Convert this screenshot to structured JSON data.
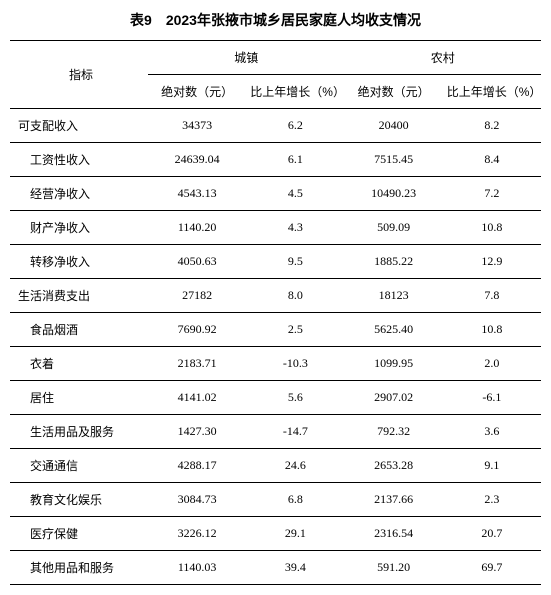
{
  "title": "表9　2023年张掖市城乡居民家庭人均收支情况",
  "headers": {
    "indicator": "指标",
    "urban": "城镇",
    "rural": "农村",
    "abs_yuan": "绝对数（元）",
    "yoy_pct": "比上年增长（%）"
  },
  "rows": [
    {
      "label": "可支配收入",
      "indent": false,
      "urban_abs": "34373",
      "urban_yoy": "6.2",
      "rural_abs": "20400",
      "rural_yoy": "8.2"
    },
    {
      "label": "工资性收入",
      "indent": true,
      "urban_abs": "24639.04",
      "urban_yoy": "6.1",
      "rural_abs": "7515.45",
      "rural_yoy": "8.4"
    },
    {
      "label": "经营净收入",
      "indent": true,
      "urban_abs": "4543.13",
      "urban_yoy": "4.5",
      "rural_abs": "10490.23",
      "rural_yoy": "7.2"
    },
    {
      "label": "财产净收入",
      "indent": true,
      "urban_abs": "1140.20",
      "urban_yoy": "4.3",
      "rural_abs": "509.09",
      "rural_yoy": "10.8"
    },
    {
      "label": "转移净收入",
      "indent": true,
      "urban_abs": "4050.63",
      "urban_yoy": "9.5",
      "rural_abs": "1885.22",
      "rural_yoy": "12.9"
    },
    {
      "label": "生活消费支出",
      "indent": false,
      "urban_abs": "27182",
      "urban_yoy": "8.0",
      "rural_abs": "18123",
      "rural_yoy": "7.8"
    },
    {
      "label": "食品烟酒",
      "indent": true,
      "urban_abs": "7690.92",
      "urban_yoy": "2.5",
      "rural_abs": "5625.40",
      "rural_yoy": "10.8"
    },
    {
      "label": "衣着",
      "indent": true,
      "urban_abs": "2183.71",
      "urban_yoy": "-10.3",
      "rural_abs": "1099.95",
      "rural_yoy": "2.0"
    },
    {
      "label": "居住",
      "indent": true,
      "urban_abs": "4141.02",
      "urban_yoy": "5.6",
      "rural_abs": "2907.02",
      "rural_yoy": "-6.1"
    },
    {
      "label": "生活用品及服务",
      "indent": true,
      "urban_abs": "1427.30",
      "urban_yoy": "-14.7",
      "rural_abs": "792.32",
      "rural_yoy": "3.6"
    },
    {
      "label": "交通通信",
      "indent": true,
      "urban_abs": "4288.17",
      "urban_yoy": "24.6",
      "rural_abs": "2653.28",
      "rural_yoy": "9.1"
    },
    {
      "label": "教育文化娱乐",
      "indent": true,
      "urban_abs": "3084.73",
      "urban_yoy": "6.8",
      "rural_abs": "2137.66",
      "rural_yoy": "2.3"
    },
    {
      "label": "医疗保健",
      "indent": true,
      "urban_abs": "3226.12",
      "urban_yoy": "29.1",
      "rural_abs": "2316.54",
      "rural_yoy": "20.7"
    },
    {
      "label": "其他用品和服务",
      "indent": true,
      "urban_abs": "1140.03",
      "urban_yoy": "39.4",
      "rural_abs": "591.20",
      "rural_yoy": "69.7"
    }
  ],
  "style": {
    "background_color": "#ffffff",
    "text_color": "#000000",
    "border_color": "#000000",
    "title_fontsize": 14,
    "body_fontsize": 12
  }
}
